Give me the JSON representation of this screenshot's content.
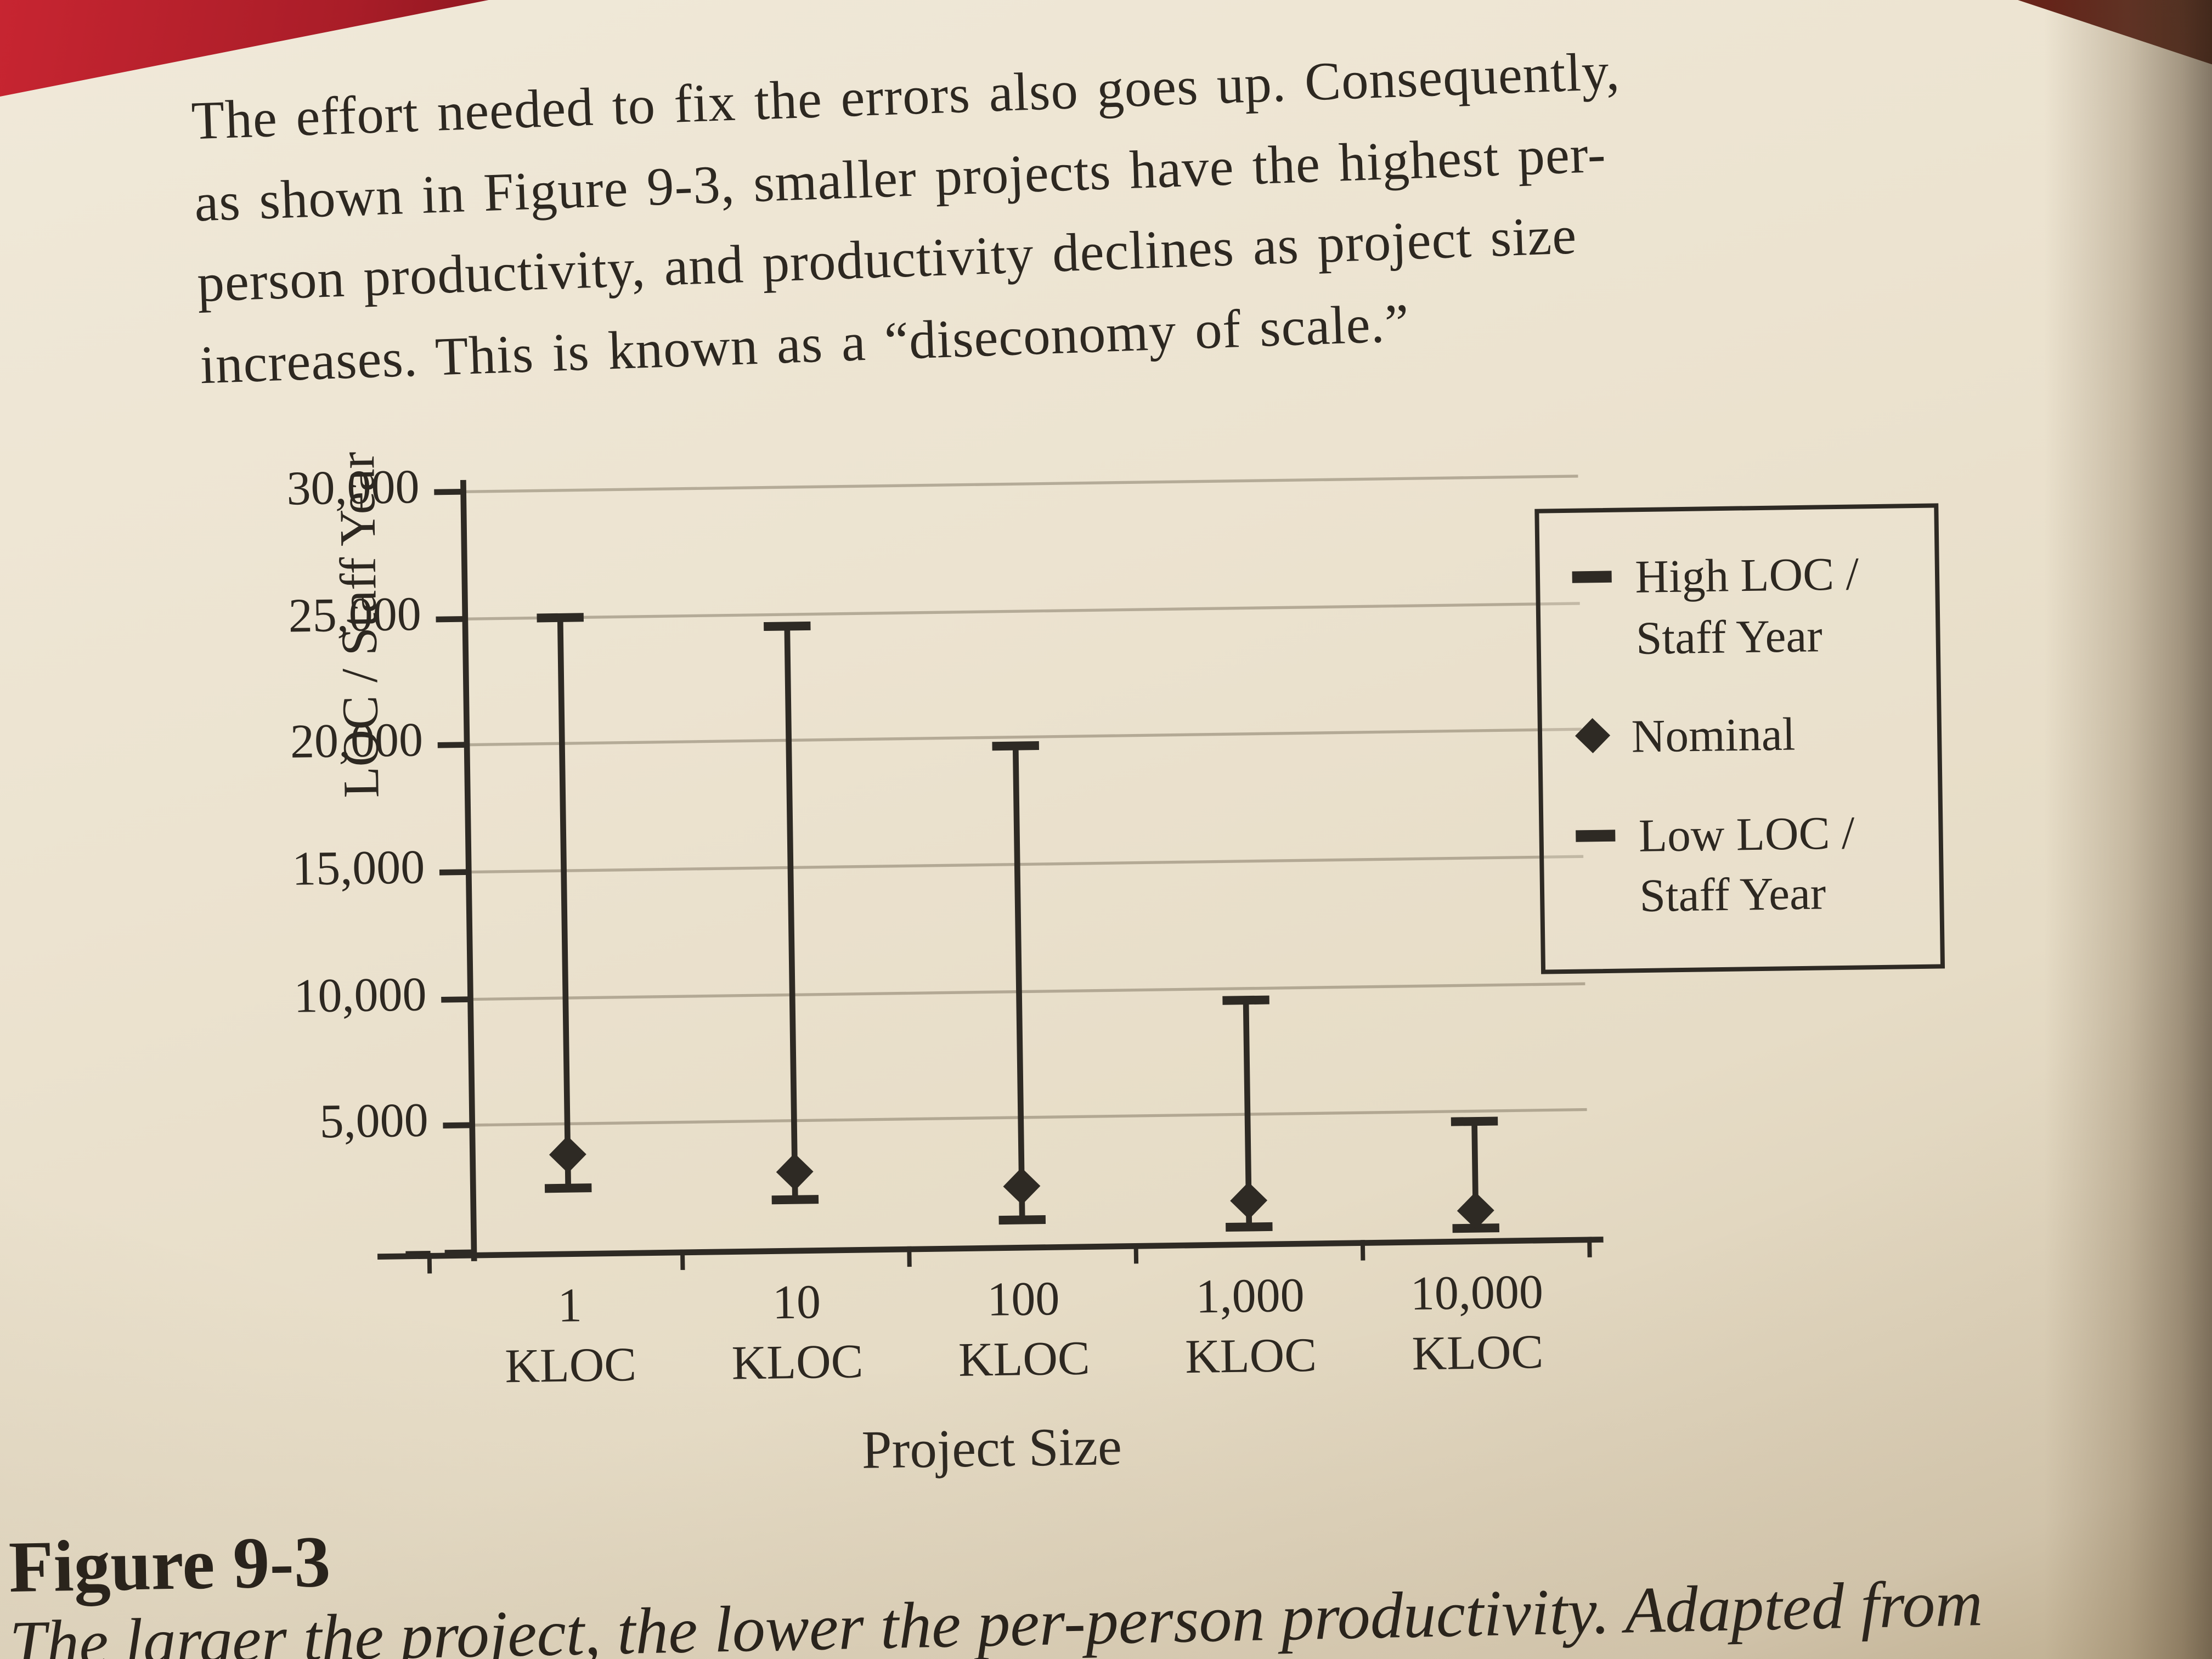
{
  "page": {
    "paragraph_lines": [
      "The effort needed to fix the errors also goes up. Consequently,",
      "as shown in Figure 9-3, smaller projects have the highest per-",
      "person productivity, and productivity declines as project size",
      "increases. This is known as a “diseconomy of scale.”"
    ],
    "figure_label": "Figure 9-3",
    "figure_caption": "The larger the project, the lower the per-person productivity. Adapted from"
  },
  "chart_data": {
    "type": "bar",
    "subtype": "hi-lo-range",
    "title": "",
    "xlabel": "Project Size",
    "ylabel": "LOC / Staff Year",
    "ylim": [
      0,
      30000
    ],
    "grid": true,
    "legend_position": "top-right",
    "categories": [
      "1 KLOC",
      "10 KLOC",
      "100 KLOC",
      "1,000 KLOC",
      "10,000 KLOC"
    ],
    "category_label_lines": [
      [
        "1",
        "KLOC"
      ],
      [
        "10",
        "KLOC"
      ],
      [
        "100",
        "KLOC"
      ],
      [
        "1,000",
        "KLOC"
      ],
      [
        "10,000",
        "KLOC"
      ]
    ],
    "yticks": [
      {
        "value": 30000,
        "label": "30,000"
      },
      {
        "value": 25000,
        "label": "25,000"
      },
      {
        "value": 20000,
        "label": "20,000"
      },
      {
        "value": 15000,
        "label": "15,000"
      },
      {
        "value": 10000,
        "label": "10,000"
      },
      {
        "value": 5000,
        "label": "5,000"
      },
      {
        "value": 0,
        "label": "–"
      }
    ],
    "series": [
      {
        "name": "High LOC / Staff Year",
        "marker": "cap",
        "values": [
          25000,
          24500,
          19700,
          9500,
          4600
        ]
      },
      {
        "name": "Nominal",
        "marker": "diamond",
        "values": [
          3800,
          3000,
          2300,
          1600,
          1100
        ]
      },
      {
        "name": "Low LOC / Staff Year",
        "marker": "cap",
        "values": [
          2500,
          1900,
          1000,
          600,
          400
        ]
      }
    ],
    "legend": [
      {
        "marker": "cap",
        "lines": [
          "High LOC /",
          "Staff Year"
        ]
      },
      {
        "marker": "diamond",
        "lines": [
          "Nominal"
        ]
      },
      {
        "marker": "cap",
        "lines": [
          "Low LOC /",
          "Staff Year"
        ]
      }
    ]
  }
}
